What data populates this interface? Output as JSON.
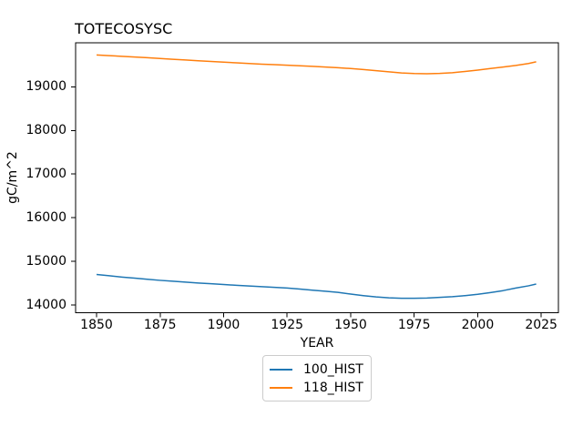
{
  "chart_data": {
    "type": "line",
    "title": "TOTECOSYSC",
    "xlabel": "YEAR",
    "ylabel": "gC/m^2",
    "grid": false,
    "legend_position": "below-center",
    "xlim": [
      1841.75,
      2031.75
    ],
    "ylim": [
      13823,
      20010
    ],
    "xticks": [
      1850,
      1875,
      1900,
      1925,
      1950,
      1975,
      2000,
      2025
    ],
    "yticks": [
      14000,
      15000,
      16000,
      17000,
      18000,
      19000
    ],
    "x": [
      1850,
      1855,
      1860,
      1865,
      1870,
      1875,
      1880,
      1885,
      1890,
      1895,
      1900,
      1905,
      1910,
      1915,
      1920,
      1925,
      1930,
      1935,
      1940,
      1945,
      1950,
      1955,
      1960,
      1965,
      1970,
      1975,
      1980,
      1985,
      1990,
      1995,
      2000,
      2005,
      2010,
      2015,
      2020,
      2023
    ],
    "series": [
      {
        "name": "100_HIST",
        "color": "#1f77b4",
        "values": [
          14700,
          14670,
          14640,
          14615,
          14590,
          14565,
          14545,
          14525,
          14505,
          14487,
          14470,
          14452,
          14435,
          14420,
          14405,
          14390,
          14365,
          14340,
          14315,
          14290,
          14250,
          14215,
          14185,
          14165,
          14155,
          14155,
          14160,
          14175,
          14190,
          14215,
          14245,
          14285,
          14330,
          14390,
          14440,
          14480
        ]
      },
      {
        "name": "118_HIST",
        "color": "#ff7f0e",
        "values": [
          19730,
          19715,
          19700,
          19685,
          19668,
          19650,
          19633,
          19615,
          19598,
          19582,
          19567,
          19550,
          19535,
          19520,
          19508,
          19495,
          19483,
          19470,
          19455,
          19438,
          19420,
          19398,
          19372,
          19345,
          19320,
          19305,
          19300,
          19308,
          19325,
          19352,
          19385,
          19420,
          19455,
          19490,
          19535,
          19575
        ]
      }
    ],
    "axis_color": "#000000",
    "background_color": "#ffffff",
    "legend_border_color": "#cccccc"
  }
}
